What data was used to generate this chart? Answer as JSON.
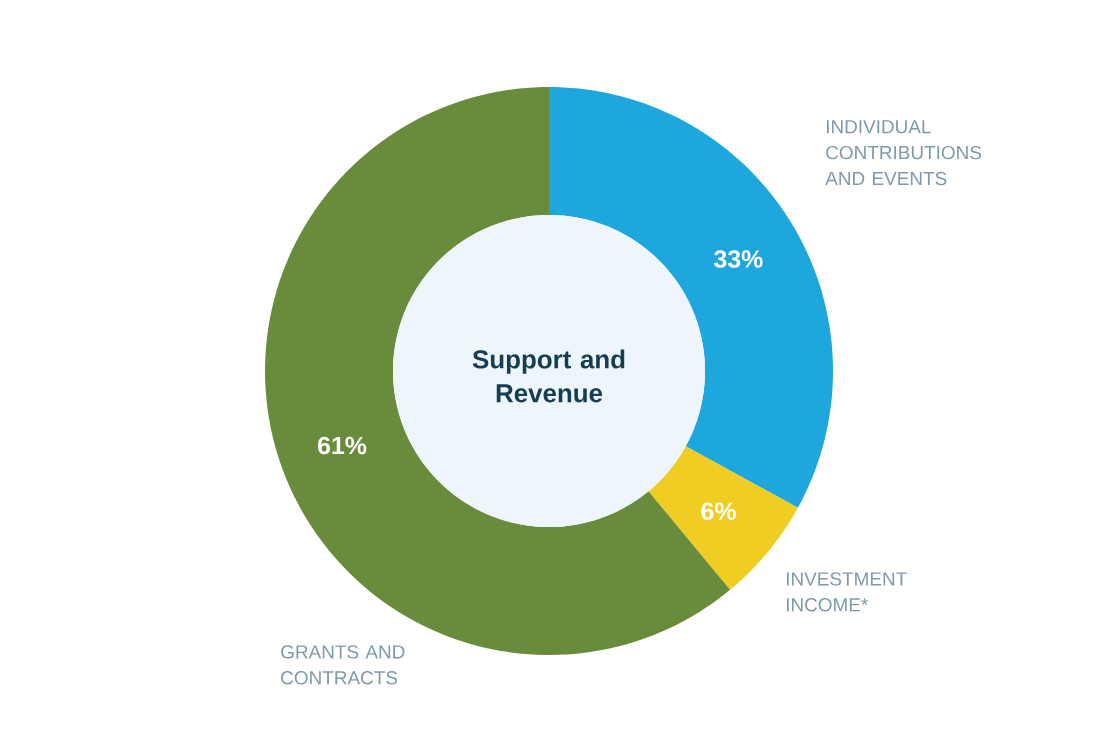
{
  "chart_data": {
    "type": "donut",
    "title": "Support and Revenue",
    "categories": [
      "INDIVIDUAL CONTRIBUTIONS AND EVENTS",
      "INVESTMENT INCOME*",
      "GRANTS AND CONTRACTS"
    ],
    "values": [
      33,
      6,
      61
    ],
    "colors": [
      "#1ea7dc",
      "#f0cd23",
      "#688c3b"
    ],
    "value_labels": [
      "33%",
      "6%",
      "61%"
    ]
  }
}
